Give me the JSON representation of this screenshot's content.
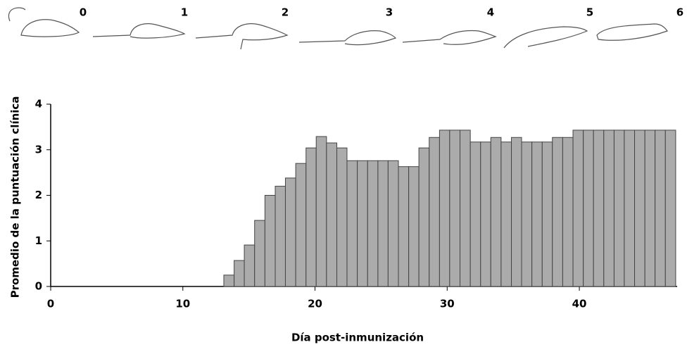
{
  "chart_data": {
    "type": "histogram",
    "annotations": [
      "0",
      "1",
      "2",
      "3",
      "4",
      "5",
      "6"
    ],
    "xlabel": "Día post-inmunización",
    "ylabel": "Promedio de la puntuación clínica",
    "bins": [
      13.1,
      13.88,
      14.65,
      15.43,
      16.21,
      16.99,
      17.76,
      18.54,
      19.32,
      20.09,
      20.87,
      21.65,
      22.42,
      23.2,
      23.98,
      24.76,
      25.53,
      26.31,
      27.09,
      27.86,
      28.64,
      29.42,
      30.19,
      30.97,
      31.75,
      32.53,
      33.3,
      34.08,
      34.86,
      35.63,
      36.41,
      37.19,
      37.96,
      38.74,
      39.52,
      40.3,
      41.07,
      41.85,
      42.63,
      43.4,
      44.18,
      44.96,
      45.73,
      46.51,
      47.29
    ],
    "values": [
      0.25,
      0.57,
      0.91,
      1.45,
      2.0,
      2.2,
      2.38,
      2.7,
      3.04,
      3.29,
      3.15,
      3.04,
      2.76,
      2.76,
      2.76,
      2.76,
      2.76,
      2.63,
      2.63,
      3.04,
      3.27,
      3.43,
      3.43,
      3.43,
      3.17,
      3.17,
      3.27,
      3.17,
      3.27,
      3.17,
      3.17,
      3.17,
      3.27,
      3.27,
      3.43,
      3.43,
      3.43,
      3.43,
      3.43,
      3.43,
      3.43,
      3.43,
      3.43,
      3.43
    ],
    "color": "#ababab",
    "xlim": [
      0,
      47.4
    ],
    "xticks": [
      0,
      10,
      20,
      30,
      40
    ],
    "ylim": [
      0,
      4
    ],
    "yticks": [
      0,
      1,
      2,
      3,
      4
    ]
  }
}
